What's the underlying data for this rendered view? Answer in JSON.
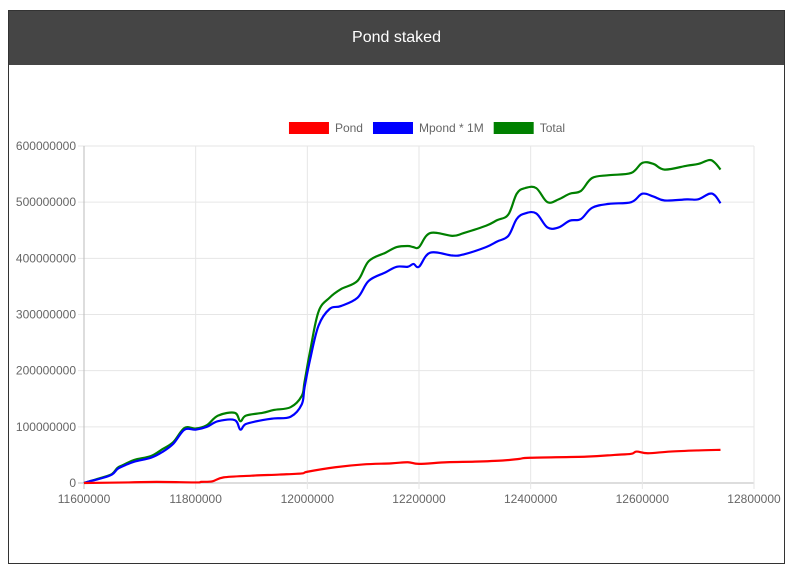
{
  "page": {
    "title": "Pond staked"
  },
  "colors": {
    "header_bg": "#454545",
    "header_text": "#ffffff"
  },
  "chart_data": {
    "type": "line",
    "title": "",
    "xlabel": "",
    "ylabel": "",
    "xlim": [
      11600000,
      12800000
    ],
    "ylim": [
      0,
      600000000
    ],
    "x_ticks": [
      "11600000",
      "11800000",
      "12000000",
      "12200000",
      "12400000",
      "12600000",
      "12800000"
    ],
    "y_ticks": [
      "0",
      "100000000",
      "200000000",
      "300000000",
      "400000000",
      "500000000",
      "600000000"
    ],
    "grid": true,
    "legend_position": "top",
    "series": [
      {
        "name": "Pond",
        "color": "#ff0000",
        "x": [
          11600000,
          11680000,
          11730000,
          11800000,
          11810000,
          11830000,
          11850000,
          11900000,
          11950000,
          11990000,
          12000000,
          12050000,
          12100000,
          12150000,
          12180000,
          12200000,
          12250000,
          12300000,
          12350000,
          12380000,
          12400000,
          12500000,
          12550000,
          12580000,
          12590000,
          12610000,
          12650000,
          12700000,
          12740000
        ],
        "y": [
          0,
          1000000,
          2000000,
          1000000,
          2000000,
          3000000,
          10000000,
          13000000,
          15000000,
          17000000,
          20000000,
          28000000,
          33000000,
          35000000,
          37000000,
          34000000,
          37000000,
          38000000,
          40000000,
          43000000,
          45000000,
          47000000,
          50000000,
          52000000,
          56000000,
          53000000,
          56000000,
          58000000,
          59000000
        ]
      },
      {
        "name": "Mpond * 1M",
        "color": "#0000ff",
        "x": [
          11600000,
          11610000,
          11630000,
          11650000,
          11660000,
          11670000,
          11690000,
          11720000,
          11740000,
          11760000,
          11780000,
          11800000,
          11820000,
          11840000,
          11870000,
          11880000,
          11890000,
          11920000,
          11940000,
          11970000,
          11990000,
          11995000,
          12005000,
          12020000,
          12040000,
          12060000,
          12090000,
          12110000,
          12140000,
          12160000,
          12180000,
          12190000,
          12200000,
          12220000,
          12260000,
          12280000,
          12320000,
          12340000,
          12360000,
          12375000,
          12390000,
          12410000,
          12430000,
          12450000,
          12470000,
          12490000,
          12510000,
          12540000,
          12580000,
          12600000,
          12620000,
          12640000,
          12680000,
          12700000,
          12720000,
          12730000,
          12740000
        ],
        "y": [
          0,
          3000000,
          8000000,
          15000000,
          25000000,
          30000000,
          38000000,
          45000000,
          55000000,
          70000000,
          95000000,
          95000000,
          100000000,
          110000000,
          112000000,
          95000000,
          105000000,
          112000000,
          115000000,
          118000000,
          140000000,
          170000000,
          220000000,
          280000000,
          310000000,
          315000000,
          330000000,
          360000000,
          375000000,
          385000000,
          385000000,
          390000000,
          385000000,
          410000000,
          405000000,
          407000000,
          420000000,
          430000000,
          440000000,
          470000000,
          480000000,
          480000000,
          455000000,
          455000000,
          467000000,
          470000000,
          490000000,
          497000000,
          500000000,
          515000000,
          510000000,
          503000000,
          505000000,
          505000000,
          515000000,
          512000000,
          498000000
        ]
      },
      {
        "name": "Total",
        "color": "#008000",
        "x": [
          11600000,
          11610000,
          11630000,
          11650000,
          11660000,
          11670000,
          11690000,
          11720000,
          11740000,
          11760000,
          11780000,
          11800000,
          11820000,
          11840000,
          11870000,
          11880000,
          11890000,
          11920000,
          11940000,
          11970000,
          11990000,
          11995000,
          12005000,
          12020000,
          12040000,
          12060000,
          12090000,
          12110000,
          12140000,
          12160000,
          12180000,
          12190000,
          12200000,
          12220000,
          12260000,
          12280000,
          12320000,
          12340000,
          12360000,
          12375000,
          12390000,
          12410000,
          12430000,
          12450000,
          12470000,
          12490000,
          12510000,
          12540000,
          12580000,
          12600000,
          12620000,
          12640000,
          12680000,
          12700000,
          12720000,
          12730000,
          12740000
        ],
        "y": [
          0,
          3000000,
          9000000,
          16000000,
          27000000,
          32000000,
          41000000,
          48000000,
          60000000,
          73000000,
          98000000,
          97000000,
          103000000,
          120000000,
          125000000,
          110000000,
          120000000,
          125000000,
          130000000,
          135000000,
          155000000,
          180000000,
          235000000,
          305000000,
          330000000,
          345000000,
          360000000,
          395000000,
          410000000,
          420000000,
          422000000,
          420000000,
          420000000,
          445000000,
          440000000,
          445000000,
          458000000,
          468000000,
          478000000,
          515000000,
          525000000,
          525000000,
          500000000,
          505000000,
          515000000,
          520000000,
          543000000,
          548000000,
          552000000,
          570000000,
          568000000,
          558000000,
          565000000,
          568000000,
          575000000,
          570000000,
          558000000
        ]
      }
    ]
  }
}
